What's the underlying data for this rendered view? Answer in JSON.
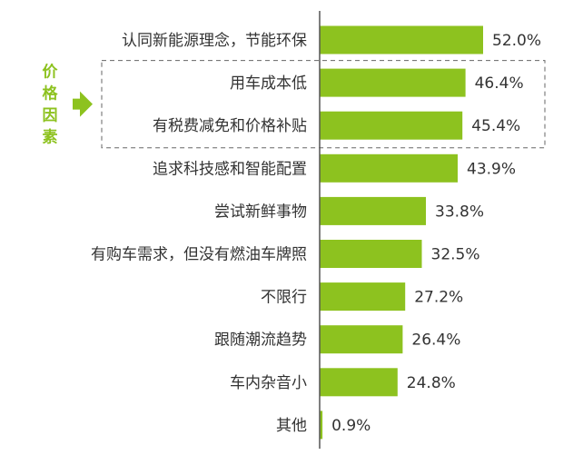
{
  "chart_data": {
    "type": "bar",
    "orientation": "horizontal",
    "categories": [
      "认同新能源理念，节能环保",
      "用车成本低",
      "有税费减免和价格补贴",
      "追求科技感和智能配置",
      "尝试新鲜事物",
      "有购车需求，但没有燃油车牌照",
      "不限行",
      "跟随潮流趋势",
      "车内杂音小",
      "其他"
    ],
    "values": [
      52.0,
      46.4,
      45.4,
      43.9,
      33.8,
      32.5,
      27.2,
      26.4,
      24.8,
      0.9
    ],
    "value_labels": [
      "52.0%",
      "46.4%",
      "45.4%",
      "43.9%",
      "33.8%",
      "32.5%",
      "27.2%",
      "26.4%",
      "24.8%",
      "0.9%"
    ],
    "xlim": [
      0,
      52.0
    ],
    "grid": false,
    "highlight": {
      "label": "价格因素",
      "categories": [
        "用车成本低",
        "有税费减免和价格补贴"
      ]
    },
    "colors": {
      "bar": "#8dc21f",
      "axis": "#555555",
      "highlight_box": "#666666",
      "highlight_text": "#8dc21f"
    }
  }
}
